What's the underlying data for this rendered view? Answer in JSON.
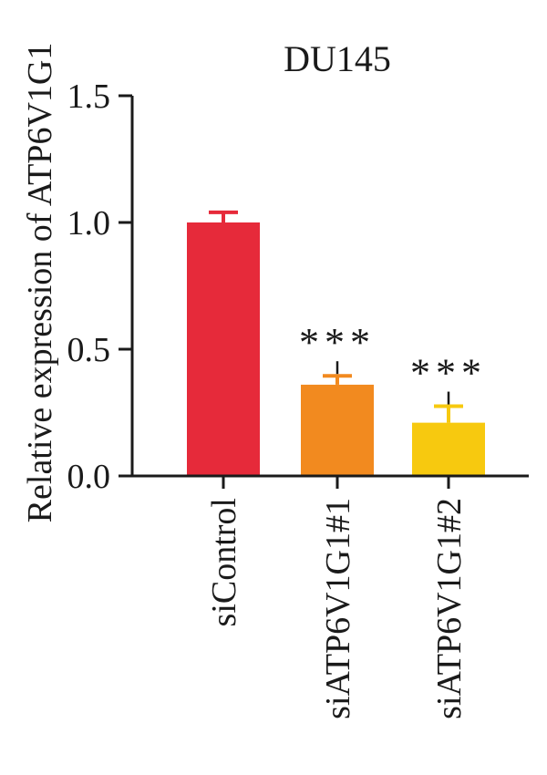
{
  "chart_data": {
    "type": "bar",
    "title": "DU145",
    "ylabel": "Relative expression of ATP6V1G1",
    "xlabel": "",
    "ylim": [
      0,
      1.5
    ],
    "yticks": [
      "0.0",
      "0.5",
      "1.0",
      "1.5"
    ],
    "categories": [
      "siControl",
      "siATP6V1G1#1",
      "siATP6V1G1#2"
    ],
    "values": [
      1.0,
      0.36,
      0.21
    ],
    "errors": [
      0.04,
      0.035,
      0.065
    ],
    "significance": [
      "",
      "***",
      "***"
    ],
    "colors": [
      "#e62a3a",
      "#f28a1f",
      "#f7c90f"
    ],
    "grid": false,
    "legend": "none"
  }
}
